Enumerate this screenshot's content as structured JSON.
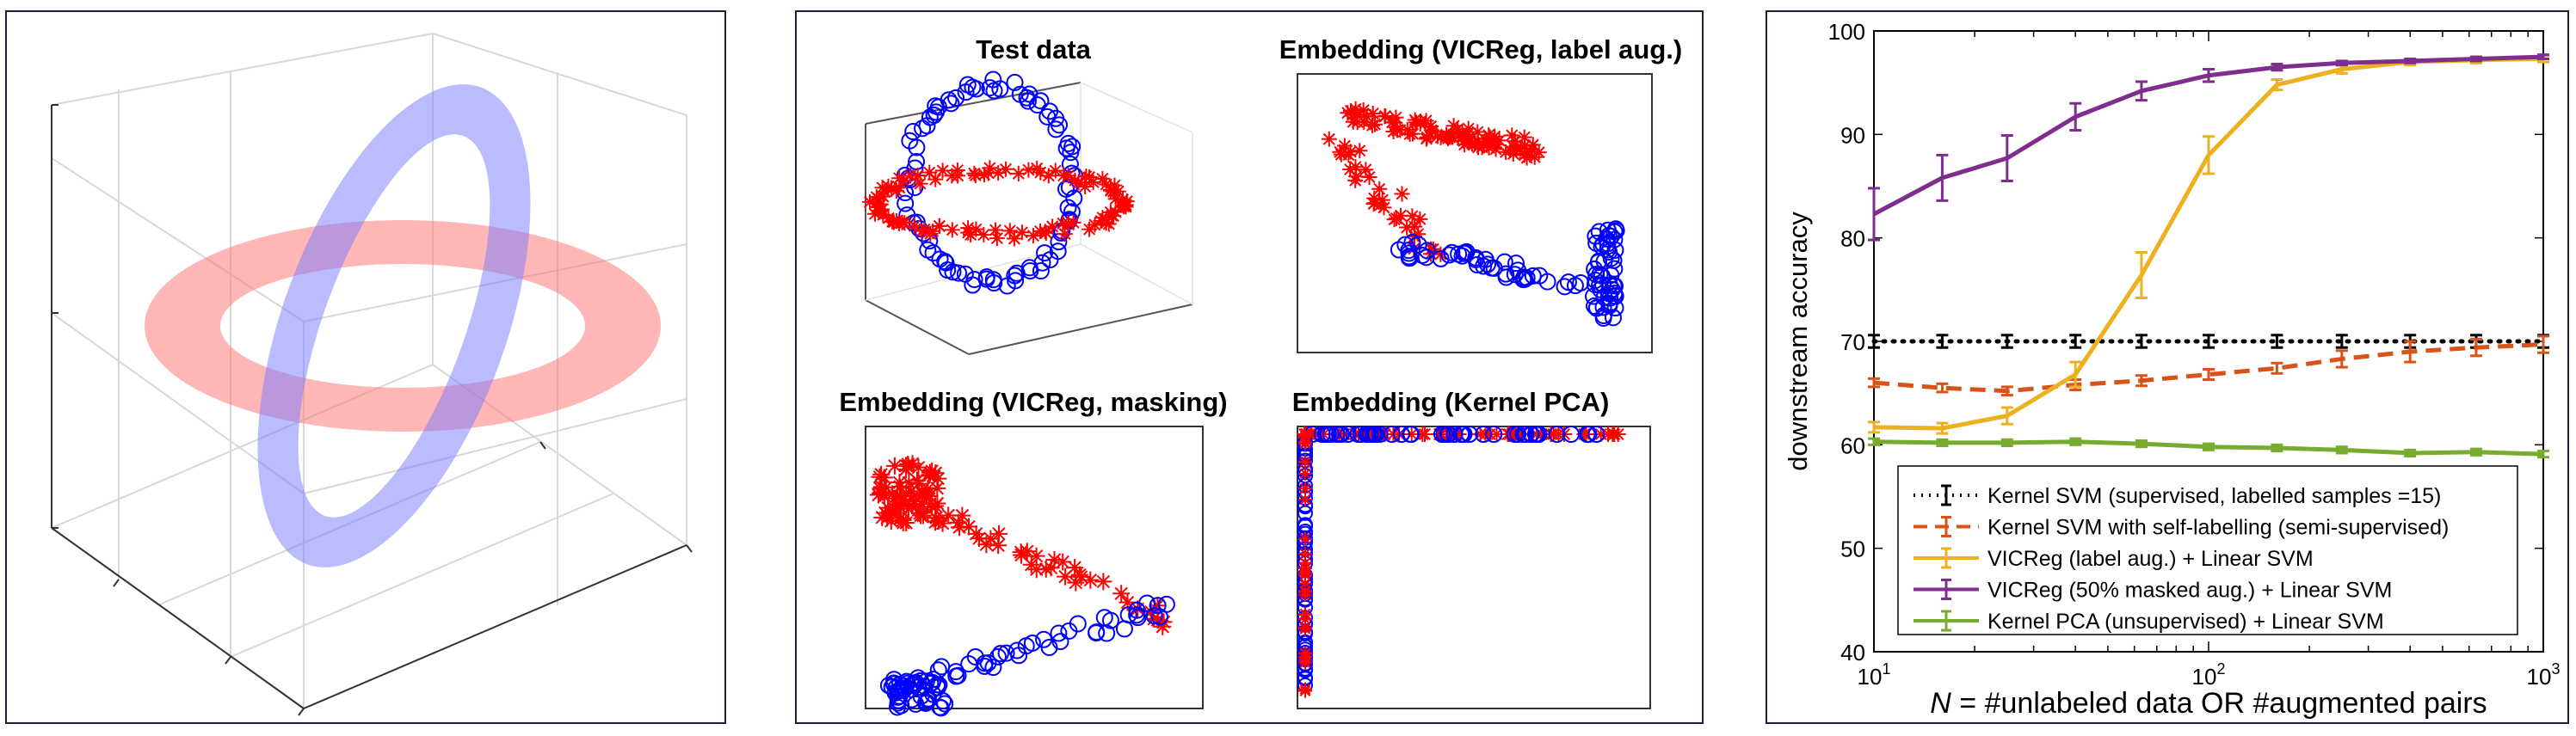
{
  "colors": {
    "red": "#ff0000",
    "blue": "#0000ff",
    "black": "#000000",
    "orange_dashed": "#d95319",
    "yellow": "#edb120",
    "purple": "#7e2f8e",
    "green": "#77ac30",
    "ring_red": "#ff8c8c",
    "ring_blue": "#8c8cff"
  },
  "panel_b": {
    "titles": {
      "test": "Test data",
      "vicreg_label": "Embedding (VICReg, label aug.)",
      "vicreg_mask": "Embedding (VICReg, masking)",
      "kpca": "Embedding (Kernel PCA)"
    }
  },
  "chart_data": {
    "type": "line",
    "xscale": "log",
    "x": [
      10,
      16,
      25,
      40,
      63,
      100,
      160,
      250,
      400,
      630,
      1000
    ],
    "xlim": [
      10,
      1000
    ],
    "ylim": [
      40,
      100
    ],
    "xticks": [
      10,
      100,
      1000
    ],
    "xtick_labels": [
      {
        "base": "10",
        "exp": "1"
      },
      {
        "base": "10",
        "exp": "2"
      },
      {
        "base": "10",
        "exp": "3"
      }
    ],
    "yticks": [
      40,
      50,
      60,
      70,
      80,
      90,
      100
    ],
    "ylabel": "downstream accuracy",
    "xlabel": {
      "italic": "N",
      "rest": " = #unlabeled data OR #augmented pairs"
    },
    "legend_position": "bottom-center",
    "series": [
      {
        "name": "Kernel SVM (supervised, labelled samples =15)",
        "style": "dotted",
        "color": "#000000",
        "values": [
          70,
          70,
          70,
          70,
          70,
          70,
          70,
          70,
          70,
          70,
          70
        ],
        "err": [
          0.6,
          0.6,
          0.6,
          0.6,
          0.6,
          0.6,
          0.6,
          0.6,
          0.6,
          0.6,
          0.6
        ]
      },
      {
        "name": "Kernel SVM with self-labelling (semi-supervised)",
        "style": "dashed",
        "color": "#d95319",
        "values": [
          66,
          65.5,
          65.2,
          65.8,
          66.2,
          66.8,
          67.4,
          68.3,
          69,
          69.4,
          69.7
        ],
        "err": [
          0.4,
          0.4,
          0.4,
          0.5,
          0.5,
          0.5,
          0.5,
          0.8,
          1,
          0.8,
          0.8
        ]
      },
      {
        "name": "VICReg (label aug.) + Linear SVM",
        "style": "solid",
        "color": "#edb120",
        "values": [
          61.7,
          61.6,
          62.8,
          66.8,
          76.4,
          88,
          94.8,
          96.3,
          97,
          97.2,
          97.3
        ],
        "err": [
          0.5,
          0.5,
          0.8,
          1.2,
          2.2,
          1.8,
          0.5,
          0.4,
          0.3,
          0.3,
          0.3
        ]
      },
      {
        "name": "VICReg (50% masked aug.) + Linear SVM",
        "style": "solid",
        "color": "#7e2f8e",
        "values": [
          82.3,
          85.8,
          87.7,
          91.7,
          94.2,
          95.7,
          96.5,
          96.9,
          97.1,
          97.3,
          97.5
        ],
        "err": [
          2.5,
          2.2,
          2.2,
          1.3,
          0.9,
          0.6,
          0.3,
          0.2,
          0.2,
          0.2,
          0.2
        ]
      },
      {
        "name": "Kernel PCA (unsupervised) + Linear SVM",
        "style": "solid",
        "color": "#77ac30",
        "values": [
          60.3,
          60.2,
          60.2,
          60.3,
          60.1,
          59.8,
          59.7,
          59.5,
          59.2,
          59.3,
          59.1
        ],
        "err": [
          0.3,
          0.3,
          0.3,
          0.3,
          0.3,
          0.3,
          0.3,
          0.3,
          0.3,
          0.3,
          0.3
        ]
      }
    ]
  }
}
